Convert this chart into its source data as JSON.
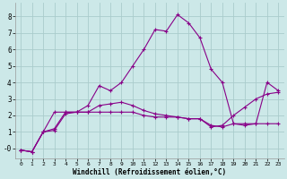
{
  "xlabel": "Windchill (Refroidissement éolien,°C)",
  "background_color": "#cce8e8",
  "grid_color": "#aacccc",
  "line_color": "#880088",
  "x_ticks": [
    0,
    1,
    2,
    3,
    4,
    5,
    6,
    7,
    8,
    9,
    10,
    11,
    12,
    13,
    14,
    15,
    16,
    17,
    18,
    19,
    20,
    21,
    22,
    23
  ],
  "y_ticks": [
    0,
    1,
    2,
    3,
    4,
    5,
    6,
    7,
    8
  ],
  "ylim": [
    -0.6,
    8.8
  ],
  "xlim": [
    -0.5,
    23.5
  ],
  "series1_x": [
    0,
    1,
    2,
    3,
    4,
    5,
    6,
    7,
    8,
    9,
    10,
    11,
    12,
    13,
    14,
    15,
    16,
    17,
    18,
    19,
    20,
    21,
    22,
    23
  ],
  "series1_y": [
    -0.1,
    -0.2,
    1.0,
    1.1,
    2.1,
    2.2,
    2.6,
    3.8,
    3.5,
    4.0,
    5.0,
    6.0,
    7.2,
    7.1,
    8.1,
    7.6,
    6.7,
    4.8,
    4.0,
    1.5,
    1.4,
    1.5,
    4.0,
    3.5
  ],
  "series2_x": [
    0,
    1,
    2,
    3,
    4,
    5,
    6,
    7,
    8,
    9,
    10,
    11,
    12,
    13,
    14,
    15,
    16,
    17,
    18,
    19,
    20,
    21,
    22,
    23
  ],
  "series2_y": [
    -0.1,
    -0.2,
    1.0,
    2.2,
    2.2,
    2.2,
    2.2,
    2.2,
    2.2,
    2.2,
    2.2,
    2.0,
    1.9,
    1.9,
    1.9,
    1.8,
    1.8,
    1.4,
    1.3,
    1.5,
    1.5,
    1.5,
    1.5,
    1.5
  ],
  "series3_x": [
    0,
    1,
    2,
    3,
    4,
    5,
    6,
    7,
    8,
    9,
    10,
    11,
    12,
    13,
    14,
    15,
    16,
    17,
    18,
    19,
    20,
    21,
    22,
    23
  ],
  "series3_y": [
    -0.1,
    -0.2,
    1.0,
    1.2,
    2.2,
    2.2,
    2.2,
    2.6,
    2.7,
    2.8,
    2.6,
    2.3,
    2.1,
    2.0,
    1.9,
    1.8,
    1.8,
    1.3,
    1.4,
    2.0,
    2.5,
    3.0,
    3.3,
    3.4
  ]
}
